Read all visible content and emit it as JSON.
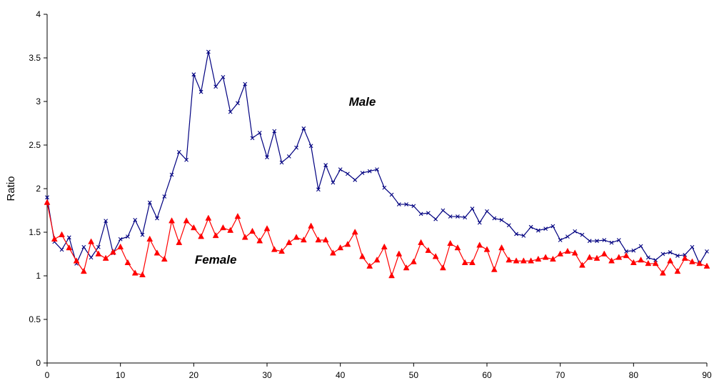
{
  "chart_data": {
    "type": "line",
    "title": "",
    "xlabel": "",
    "ylabel": "Ratio",
    "xlim": [
      0,
      90
    ],
    "ylim": [
      0,
      4
    ],
    "x_ticks": [
      0,
      10,
      20,
      30,
      40,
      50,
      60,
      70,
      80,
      90
    ],
    "y_ticks": [
      0,
      0.5,
      1,
      1.5,
      2,
      2.5,
      3,
      3.5,
      4
    ],
    "x_tick_labels": [
      "0",
      "10",
      "20",
      "30",
      "40",
      "50",
      "60",
      "70",
      "80",
      "90"
    ],
    "y_tick_labels": [
      "0",
      "0.5",
      "1",
      "1.5",
      "2",
      "2.5",
      "3",
      "3.5",
      "4"
    ],
    "grid": false,
    "legend": "none",
    "x": [
      0,
      1,
      2,
      3,
      4,
      5,
      6,
      7,
      8,
      9,
      10,
      11,
      12,
      13,
      14,
      15,
      16,
      17,
      18,
      19,
      20,
      21,
      22,
      23,
      24,
      25,
      26,
      27,
      28,
      29,
      30,
      31,
      32,
      33,
      34,
      35,
      36,
      37,
      38,
      39,
      40,
      41,
      42,
      43,
      44,
      45,
      46,
      47,
      48,
      49,
      50,
      51,
      52,
      53,
      54,
      55,
      56,
      57,
      58,
      59,
      60,
      61,
      62,
      63,
      64,
      65,
      66,
      67,
      68,
      69,
      70,
      71,
      72,
      73,
      74,
      75,
      76,
      77,
      78,
      79,
      80,
      81,
      82,
      83,
      84,
      85,
      86,
      87,
      88,
      89,
      90
    ],
    "series": [
      {
        "name": "Male",
        "color": "#000080",
        "marker": "x",
        "values": [
          1.9,
          1.39,
          1.3,
          1.44,
          1.14,
          1.33,
          1.21,
          1.33,
          1.63,
          1.26,
          1.42,
          1.45,
          1.64,
          1.47,
          1.84,
          1.66,
          1.91,
          2.16,
          2.42,
          2.33,
          3.31,
          3.11,
          3.57,
          3.17,
          3.28,
          2.88,
          2.98,
          3.2,
          2.58,
          2.64,
          2.36,
          2.66,
          2.3,
          2.37,
          2.47,
          2.69,
          2.49,
          1.99,
          2.27,
          2.07,
          2.22,
          2.17,
          2.1,
          2.18,
          2.2,
          2.22,
          2.01,
          1.93,
          1.82,
          1.82,
          1.8,
          1.71,
          1.72,
          1.65,
          1.75,
          1.68,
          1.68,
          1.67,
          1.77,
          1.61,
          1.74,
          1.66,
          1.64,
          1.58,
          1.48,
          1.46,
          1.56,
          1.52,
          1.54,
          1.57,
          1.41,
          1.45,
          1.51,
          1.47,
          1.4,
          1.4,
          1.41,
          1.38,
          1.41,
          1.28,
          1.29,
          1.34,
          1.21,
          1.18,
          1.25,
          1.27,
          1.23,
          1.24,
          1.33,
          1.14,
          1.28
        ]
      },
      {
        "name": "Female",
        "color": "#ff0000",
        "marker": "triangle",
        "values": [
          1.84,
          1.42,
          1.47,
          1.32,
          1.17,
          1.05,
          1.39,
          1.25,
          1.2,
          1.27,
          1.33,
          1.15,
          1.03,
          1.01,
          1.42,
          1.26,
          1.19,
          1.63,
          1.38,
          1.63,
          1.55,
          1.45,
          1.66,
          1.46,
          1.55,
          1.52,
          1.68,
          1.44,
          1.51,
          1.4,
          1.54,
          1.3,
          1.28,
          1.38,
          1.44,
          1.41,
          1.57,
          1.41,
          1.41,
          1.26,
          1.32,
          1.36,
          1.5,
          1.22,
          1.11,
          1.18,
          1.33,
          1.0,
          1.25,
          1.09,
          1.16,
          1.38,
          1.29,
          1.22,
          1.09,
          1.37,
          1.32,
          1.15,
          1.15,
          1.35,
          1.3,
          1.07,
          1.32,
          1.18,
          1.17,
          1.17,
          1.17,
          1.19,
          1.21,
          1.19,
          1.25,
          1.28,
          1.26,
          1.12,
          1.21,
          1.2,
          1.25,
          1.17,
          1.21,
          1.23,
          1.15,
          1.18,
          1.14,
          1.14,
          1.03,
          1.17,
          1.05,
          1.2,
          1.16,
          1.14,
          1.11
        ]
      }
    ],
    "annotations": [
      {
        "text": "Male",
        "x": 43,
        "y": 2.95
      },
      {
        "text": "Female",
        "x": 23,
        "y": 1.14
      }
    ]
  }
}
